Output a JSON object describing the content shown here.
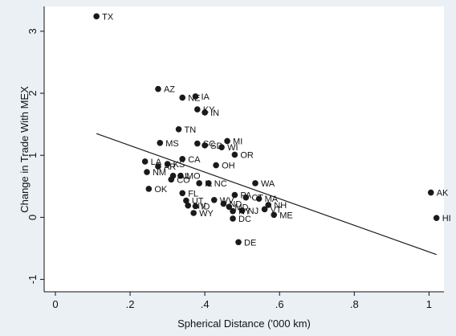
{
  "chart_data": {
    "type": "scatter",
    "xlabel": "Spherical Distance ('000 km)",
    "ylabel": "Change in Trade With MEX",
    "xlim": [
      -0.03,
      1.04
    ],
    "ylim": [
      -1.2,
      3.4
    ],
    "x_ticks": [
      0,
      0.2,
      0.4,
      0.6,
      0.8,
      1
    ],
    "x_tick_labels": [
      "0",
      ".2",
      ".4",
      ".6",
      ".8",
      "1"
    ],
    "y_ticks": [
      -1,
      0,
      1,
      2,
      3
    ],
    "y_tick_labels": [
      "-1",
      "0",
      "1",
      "2",
      "3"
    ],
    "grid": false,
    "fit_line": {
      "x": [
        0.11,
        1.02
      ],
      "y": [
        1.35,
        -0.6
      ]
    },
    "colors": {
      "point": "#1a1a1a",
      "line": "#1a1a1a",
      "plot_bg": "#ffffff",
      "page_bg": "#eaf0f4"
    },
    "points": [
      {
        "label": "TX",
        "x": 0.11,
        "y": 3.24
      },
      {
        "label": "AZ",
        "x": 0.275,
        "y": 2.07
      },
      {
        "label": "NE",
        "x": 0.34,
        "y": 1.93
      },
      {
        "label": "IA",
        "x": 0.375,
        "y": 1.95
      },
      {
        "label": "KY",
        "x": 0.38,
        "y": 1.74
      },
      {
        "label": "IN",
        "x": 0.4,
        "y": 1.69
      },
      {
        "label": "TN",
        "x": 0.33,
        "y": 1.42
      },
      {
        "label": "MS",
        "x": 0.28,
        "y": 1.2
      },
      {
        "label": "SC",
        "x": 0.38,
        "y": 1.19
      },
      {
        "label": "SD",
        "x": 0.4,
        "y": 1.16
      },
      {
        "label": "MI",
        "x": 0.46,
        "y": 1.23
      },
      {
        "label": "WI",
        "x": 0.445,
        "y": 1.13
      },
      {
        "label": "OR",
        "x": 0.48,
        "y": 1.01
      },
      {
        "label": "CA",
        "x": 0.34,
        "y": 0.94
      },
      {
        "label": "LA",
        "x": 0.24,
        "y": 0.9
      },
      {
        "label": "KS",
        "x": 0.3,
        "y": 0.86
      },
      {
        "label": "AR",
        "x": 0.275,
        "y": 0.82
      },
      {
        "label": "OH",
        "x": 0.43,
        "y": 0.84
      },
      {
        "label": "NM",
        "x": 0.245,
        "y": 0.73
      },
      {
        "label": "MO",
        "x": 0.335,
        "y": 0.67
      },
      {
        "label": "AL",
        "x": 0.315,
        "y": 0.67
      },
      {
        "label": "CO",
        "x": 0.31,
        "y": 0.61
      },
      {
        "label": "IL",
        "x": 0.385,
        "y": 0.55
      },
      {
        "label": "NC",
        "x": 0.41,
        "y": 0.55
      },
      {
        "label": "WA",
        "x": 0.535,
        "y": 0.55
      },
      {
        "label": "OK",
        "x": 0.25,
        "y": 0.46
      },
      {
        "label": "FL",
        "x": 0.34,
        "y": 0.39
      },
      {
        "label": "PA",
        "x": 0.48,
        "y": 0.36
      },
      {
        "label": "CT",
        "x": 0.51,
        "y": 0.32
      },
      {
        "label": "MA",
        "x": 0.545,
        "y": 0.3
      },
      {
        "label": "UT",
        "x": 0.35,
        "y": 0.27
      },
      {
        "label": "WV",
        "x": 0.425,
        "y": 0.28
      },
      {
        "label": "ND",
        "x": 0.45,
        "y": 0.22
      },
      {
        "label": "NH",
        "x": 0.57,
        "y": 0.2
      },
      {
        "label": "NV",
        "x": 0.355,
        "y": 0.19
      },
      {
        "label": "ID",
        "x": 0.375,
        "y": 0.18
      },
      {
        "label": "MD",
        "x": 0.465,
        "y": 0.17
      },
      {
        "label": "VT",
        "x": 0.56,
        "y": 0.13
      },
      {
        "label": "NJ",
        "x": 0.5,
        "y": 0.11
      },
      {
        "label": "NY",
        "x": 0.475,
        "y": 0.1
      },
      {
        "label": "WY",
        "x": 0.37,
        "y": 0.07
      },
      {
        "label": "ME",
        "x": 0.585,
        "y": 0.04
      },
      {
        "label": "DC",
        "x": 0.475,
        "y": -0.02
      },
      {
        "label": "AK",
        "x": 1.005,
        "y": 0.4
      },
      {
        "label": "HI",
        "x": 1.02,
        "y": -0.01
      },
      {
        "label": "DE",
        "x": 0.49,
        "y": -0.4
      }
    ]
  }
}
